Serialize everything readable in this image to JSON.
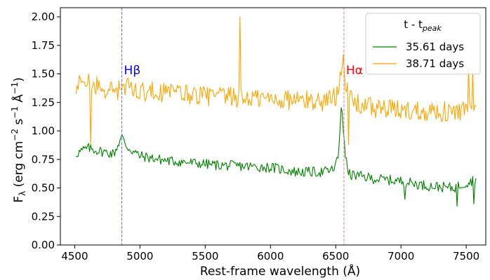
{
  "chart_data": {
    "type": "line",
    "xlabel": "Rest-frame wavelength (Å)",
    "ylabel": {
      "main": "F",
      "sub": "λ",
      "units_open": " (erg cm",
      "exp1": "−2",
      "s": " s",
      "exp2": "−1",
      "a": " Å",
      "exp3": "−1",
      "close": ")"
    },
    "xlim": [
      4390,
      7650
    ],
    "ylim": [
      0.0,
      2.08
    ],
    "xticks": [
      "4500",
      "5000",
      "5500",
      "6000",
      "6500",
      "7000",
      "7500"
    ],
    "yticks": [
      "0.00",
      "0.25",
      "0.50",
      "0.75",
      "1.00",
      "1.25",
      "1.50",
      "1.75",
      "2.00"
    ],
    "grid": false,
    "legend": {
      "title_main": "t - t",
      "title_sub": "peak",
      "placement": "top-right",
      "entries": [
        "35.61 days",
        "38.71 days"
      ]
    },
    "lines": [
      {
        "label": "Hβ",
        "x": 4861,
        "color": "#6a6ae8",
        "text_color": "#0000ff"
      },
      {
        "label": "Hα",
        "x": 6563,
        "color": "#f08080",
        "text_color": "#ff0000"
      }
    ],
    "series": [
      {
        "name": "35.61 days",
        "color": "#008000",
        "anchors": [
          [
            4510,
            0.8
          ],
          [
            4600,
            0.85
          ],
          [
            4700,
            0.82
          ],
          [
            4800,
            0.8
          ],
          [
            4860,
            0.95
          ],
          [
            4900,
            0.86
          ],
          [
            5000,
            0.78
          ],
          [
            5200,
            0.74
          ],
          [
            5400,
            0.72
          ],
          [
            5600,
            0.7
          ],
          [
            5800,
            0.69
          ],
          [
            6000,
            0.68
          ],
          [
            6200,
            0.64
          ],
          [
            6400,
            0.64
          ],
          [
            6480,
            0.66
          ],
          [
            6520,
            0.76
          ],
          [
            6545,
            1.28
          ],
          [
            6570,
            0.8
          ],
          [
            6600,
            0.62
          ],
          [
            6800,
            0.58
          ],
          [
            7000,
            0.56
          ],
          [
            7200,
            0.52
          ],
          [
            7400,
            0.5
          ],
          [
            7580,
            0.58
          ]
        ],
        "noise": 0.045,
        "spikes": [
          [
            7030,
            0.4
          ],
          [
            7430,
            0.34
          ],
          [
            7560,
            0.36
          ]
        ]
      },
      {
        "name": "38.71 days",
        "color": "#ffa500",
        "anchors": [
          [
            4510,
            1.4
          ],
          [
            4600,
            1.42
          ],
          [
            4700,
            1.38
          ],
          [
            4800,
            1.35
          ],
          [
            4900,
            1.38
          ],
          [
            5000,
            1.35
          ],
          [
            5200,
            1.34
          ],
          [
            5400,
            1.32
          ],
          [
            5600,
            1.3
          ],
          [
            5800,
            1.29
          ],
          [
            6000,
            1.28
          ],
          [
            6200,
            1.27
          ],
          [
            6400,
            1.26
          ],
          [
            6500,
            1.3
          ],
          [
            6535,
            1.5
          ],
          [
            6555,
            1.7
          ],
          [
            6580,
            1.35
          ],
          [
            6650,
            1.24
          ],
          [
            6800,
            1.2
          ],
          [
            7000,
            1.18
          ],
          [
            7200,
            1.18
          ],
          [
            7400,
            1.16
          ],
          [
            7580,
            1.2
          ]
        ],
        "noise": 0.09,
        "spikes": [
          [
            4620,
            0.88
          ],
          [
            5770,
            2.0
          ],
          [
            6600,
            0.88
          ],
          [
            7520,
            1.56
          ],
          [
            7550,
            1.52
          ]
        ]
      }
    ]
  }
}
